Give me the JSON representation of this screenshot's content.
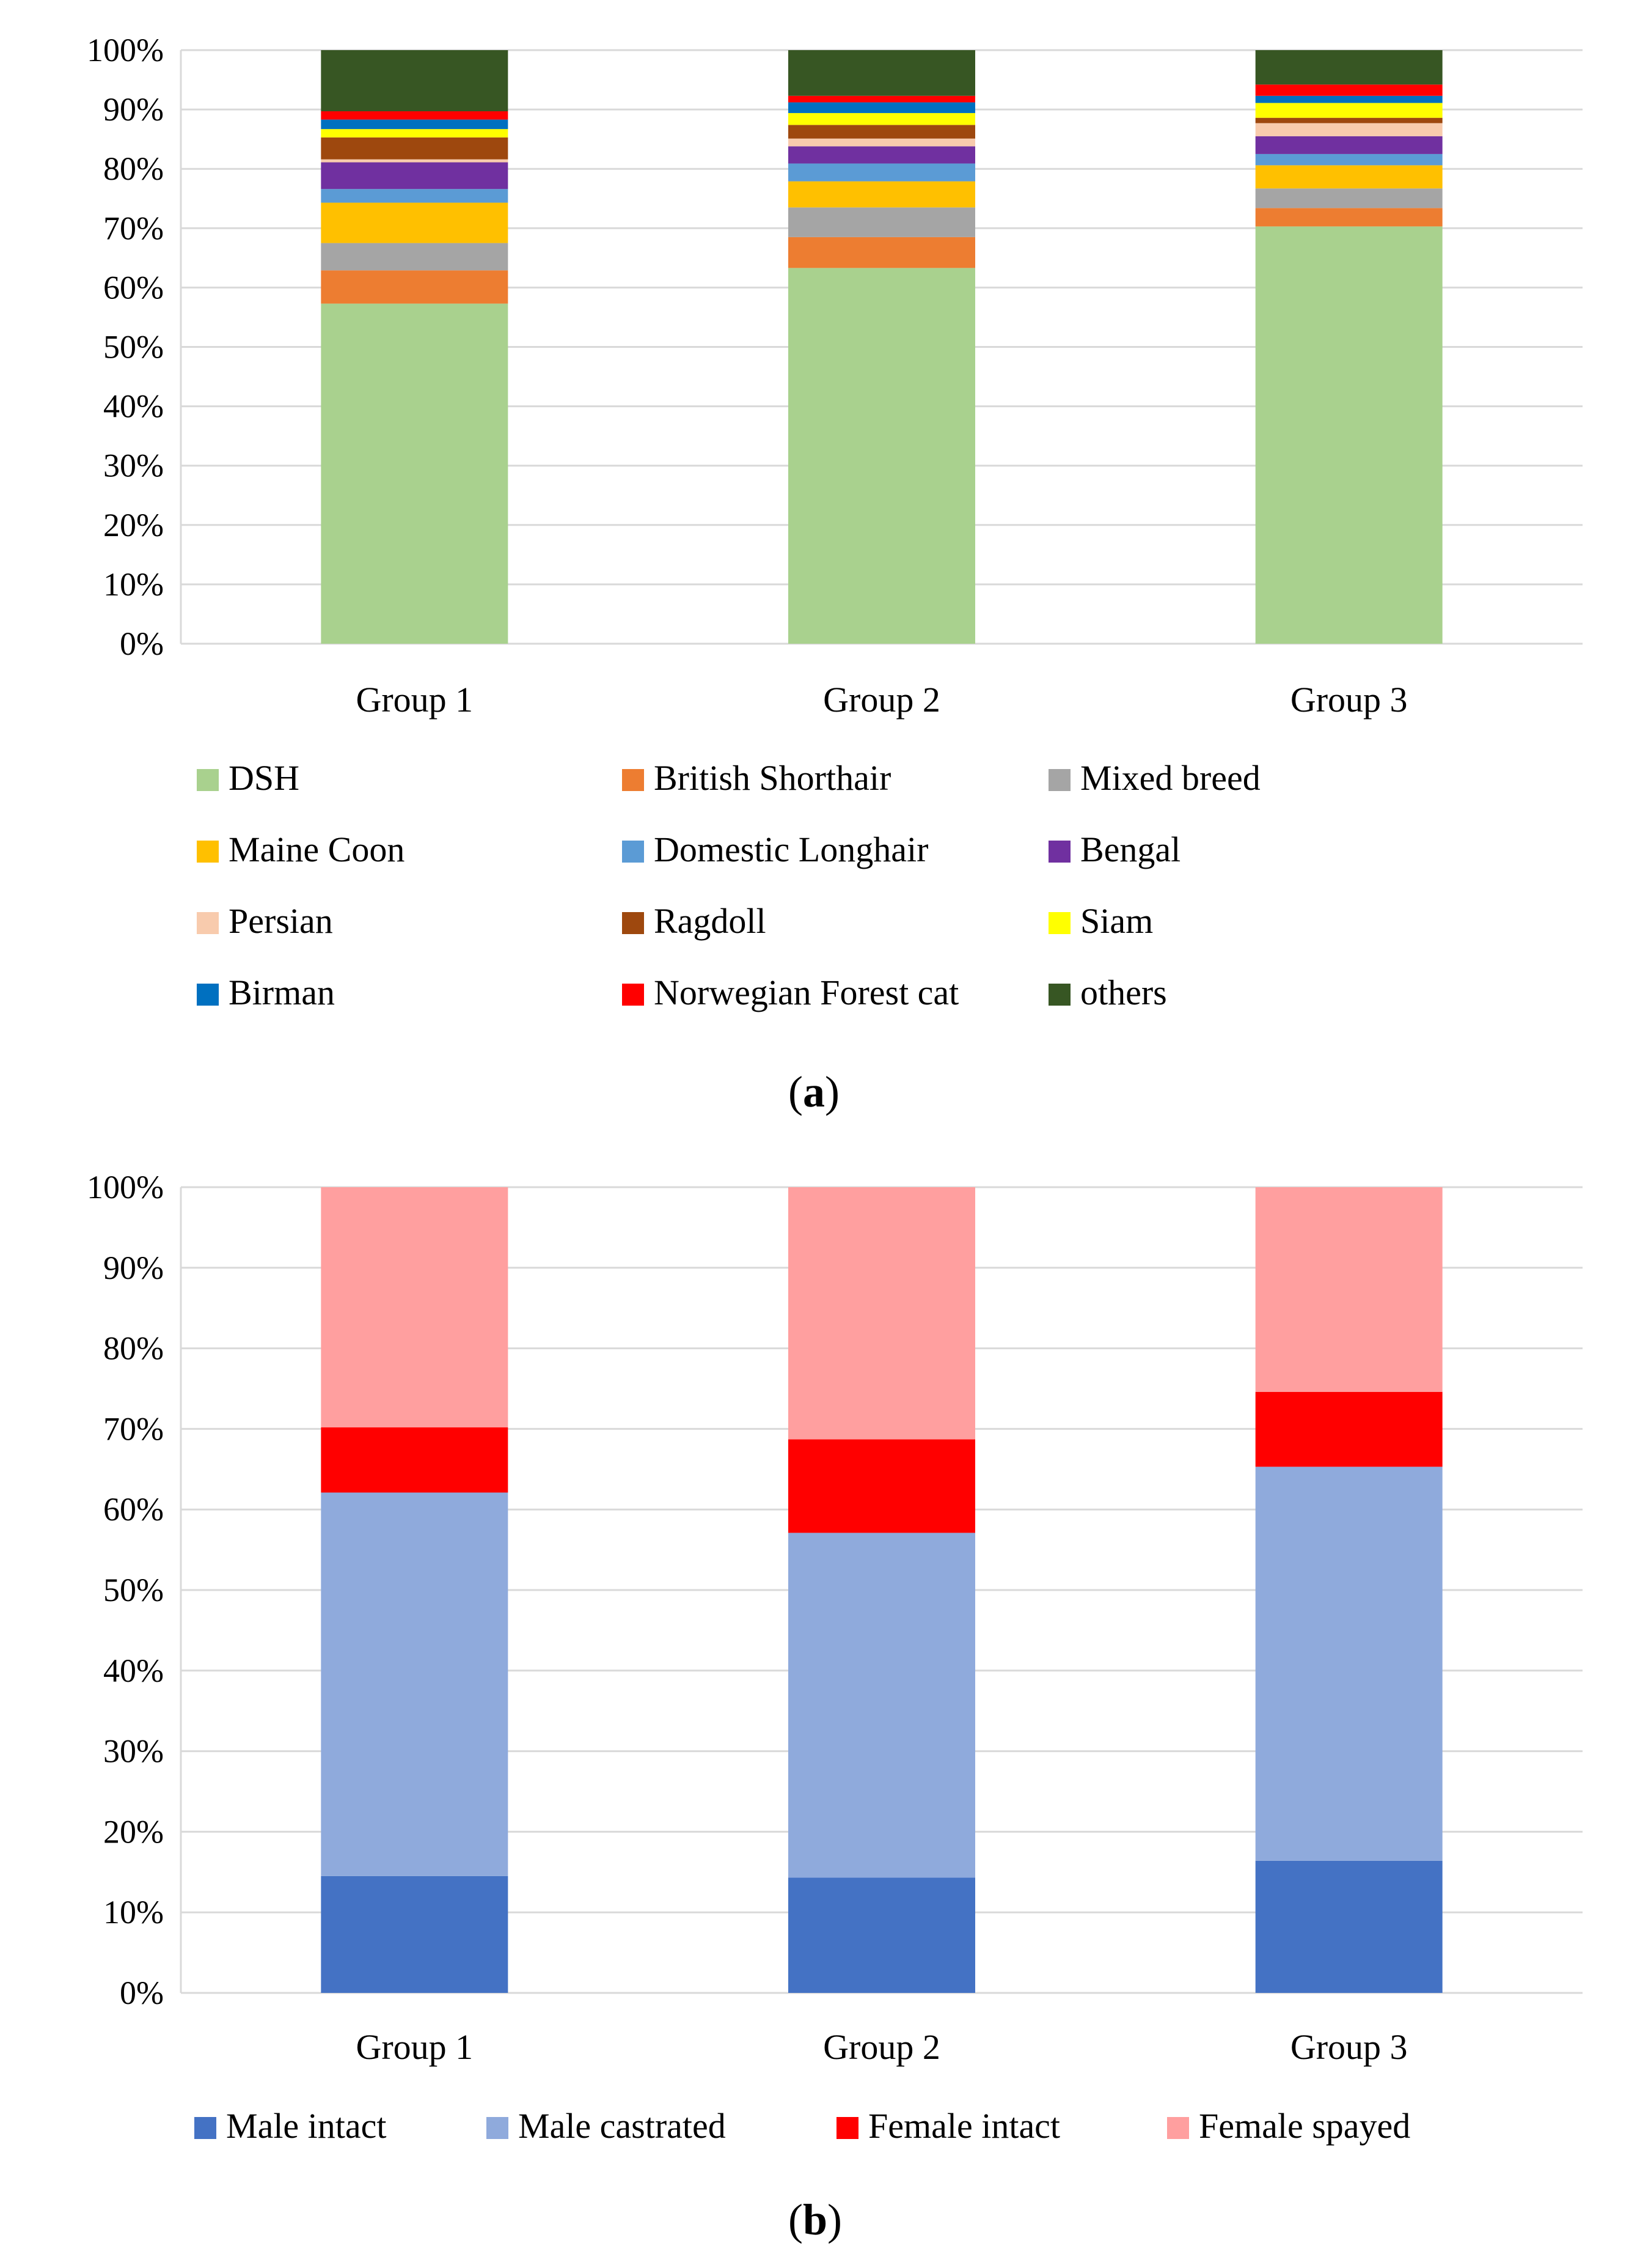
{
  "panel_labels": [
    "a",
    "b"
  ],
  "chart_data": [
    {
      "type": "bar",
      "stacked": true,
      "title": "",
      "xlabel": "",
      "ylabel": "",
      "ylim": [
        0,
        100
      ],
      "y_ticks": [
        "0%",
        "10%",
        "20%",
        "30%",
        "40%",
        "50%",
        "60%",
        "70%",
        "80%",
        "90%",
        "100%"
      ],
      "grid": true,
      "legend_position": "bottom",
      "categories": [
        "Group 1",
        "Group 2",
        "Group 3"
      ],
      "series": [
        {
          "name": "DSH",
          "color": "#A9D18E",
          "values": [
            57.3,
            63.3,
            70.3
          ]
        },
        {
          "name": "British Shorthair",
          "color": "#ED7D31",
          "values": [
            5.6,
            5.2,
            3.1
          ]
        },
        {
          "name": "Mixed breed",
          "color": "#A5A5A5",
          "values": [
            4.6,
            5.0,
            3.3
          ]
        },
        {
          "name": "Maine Coon",
          "color": "#FFC000",
          "values": [
            6.8,
            4.4,
            3.9
          ]
        },
        {
          "name": "Domestic Longhair",
          "color": "#5B9BD5",
          "values": [
            2.3,
            3.0,
            1.9
          ]
        },
        {
          "name": "Bengal",
          "color": "#7030A0",
          "values": [
            4.5,
            2.9,
            3.0
          ]
        },
        {
          "name": "Persian",
          "color": "#F8CBAD",
          "values": [
            0.5,
            1.3,
            2.2
          ]
        },
        {
          "name": "Ragdoll",
          "color": "#9E480E",
          "values": [
            3.7,
            2.3,
            0.9
          ]
        },
        {
          "name": "Siam",
          "color": "#FFFF00",
          "values": [
            1.4,
            2.0,
            2.5
          ]
        },
        {
          "name": "Birman",
          "color": "#0070C0",
          "values": [
            1.6,
            1.8,
            1.2
          ]
        },
        {
          "name": "Norwegian Forest cat",
          "color": "#FF0000",
          "values": [
            1.4,
            1.1,
            1.9
          ]
        },
        {
          "name": "others",
          "color": "#375623",
          "values": [
            10.3,
            7.7,
            5.8
          ]
        }
      ]
    },
    {
      "type": "bar",
      "stacked": true,
      "title": "",
      "xlabel": "",
      "ylabel": "",
      "ylim": [
        0,
        100
      ],
      "y_ticks": [
        "0%",
        "10%",
        "20%",
        "30%",
        "40%",
        "50%",
        "60%",
        "70%",
        "80%",
        "90%",
        "100%"
      ],
      "grid": true,
      "legend_position": "bottom",
      "categories": [
        "Group 1",
        "Group 2",
        "Group 3"
      ],
      "series": [
        {
          "name": "Male intact",
          "color": "#4472C4",
          "values": [
            14.5,
            14.3,
            16.4
          ]
        },
        {
          "name": "Male castrated",
          "color": "#8FAADC",
          "values": [
            47.6,
            42.8,
            48.9
          ]
        },
        {
          "name": "Female intact",
          "color": "#FF0000",
          "values": [
            8.1,
            11.6,
            9.3
          ]
        },
        {
          "name": "Female spayed",
          "color": "#FF9F9F",
          "values": [
            29.8,
            31.3,
            25.4
          ]
        }
      ]
    }
  ]
}
